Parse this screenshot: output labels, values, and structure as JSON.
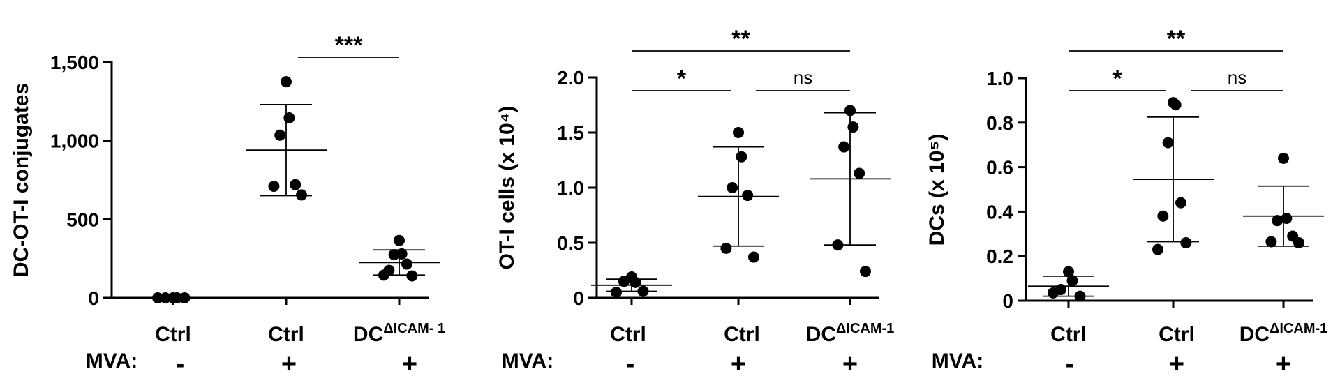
{
  "chart_data": [
    {
      "type": "scatter",
      "title": "",
      "ylabel": "DC-OT-I conjugates",
      "ylim": [
        0,
        1500
      ],
      "yticks": [
        0,
        500,
        1000,
        1500
      ],
      "ytick_labels": [
        "0",
        "500",
        "1,000",
        "1,500"
      ],
      "categories": [
        "Ctrl",
        "Ctrl",
        "DC^ΔICAM- 1"
      ],
      "mva": [
        "-",
        "+",
        "+"
      ],
      "groups": [
        {
          "points": [
            0,
            0,
            0,
            0,
            0
          ],
          "mean": null,
          "sd": null
        },
        {
          "points": [
            1375,
            1145,
            1035,
            720,
            710,
            655
          ],
          "mean": 940,
          "sd": 290
        },
        {
          "points": [
            365,
            280,
            275,
            215,
            175,
            140,
            145
          ],
          "mean": 225,
          "sd": 80
        }
      ],
      "significance": [
        {
          "from": 1,
          "to": 2,
          "label": "***"
        }
      ]
    },
    {
      "type": "scatter",
      "title": "",
      "ylabel": "OT-I cells (x 10⁴)",
      "ylim": [
        0,
        2.0
      ],
      "yticks": [
        0,
        0.5,
        1.0,
        1.5,
        2.0
      ],
      "ytick_labels": [
        "0",
        "0.5",
        "1.0",
        "1.5",
        "2.0"
      ],
      "categories": [
        "Ctrl",
        "Ctrl",
        "DC^ΔICAM-1"
      ],
      "mva": [
        "-",
        "+",
        "+"
      ],
      "groups": [
        {
          "points": [
            0.19,
            0.14,
            0.15,
            0.06,
            0.05
          ],
          "mean": 0.115,
          "sd": 0.055
        },
        {
          "points": [
            1.5,
            1.28,
            1.0,
            0.93,
            0.45,
            0.37
          ],
          "mean": 0.92,
          "sd": 0.45
        },
        {
          "points": [
            1.7,
            1.55,
            1.37,
            1.13,
            0.48,
            0.24
          ],
          "mean": 1.08,
          "sd": 0.6
        }
      ],
      "significance": [
        {
          "from": 0,
          "to": 2,
          "label": "**"
        },
        {
          "from": 0,
          "to": 1,
          "label": "*"
        },
        {
          "from": 1,
          "to": 2,
          "label": "ns"
        }
      ]
    },
    {
      "type": "scatter",
      "title": "",
      "ylabel": "DCs (x 10⁵)",
      "ylim": [
        0,
        1.0
      ],
      "yticks": [
        0,
        0.2,
        0.4,
        0.6,
        0.8,
        1.0
      ],
      "ytick_labels": [
        "0",
        "0.2",
        "0.4",
        "0.6",
        "0.8",
        "1.0"
      ],
      "categories": [
        "Ctrl",
        "Ctrl",
        "DC^ΔICAM-1"
      ],
      "mva": [
        "-",
        "+",
        "+"
      ],
      "groups": [
        {
          "points": [
            0.13,
            0.09,
            0.05,
            0.02,
            0.035
          ],
          "mean": 0.065,
          "sd": 0.045
        },
        {
          "points": [
            0.89,
            0.88,
            0.71,
            0.44,
            0.38,
            0.26,
            0.23
          ],
          "mean": 0.545,
          "sd": 0.28
        },
        {
          "points": [
            0.64,
            0.37,
            0.36,
            0.29,
            0.265,
            0.26
          ],
          "mean": 0.38,
          "sd": 0.135
        }
      ],
      "significance": [
        {
          "from": 0,
          "to": 2,
          "label": "**"
        },
        {
          "from": 0,
          "to": 1,
          "label": "*"
        },
        {
          "from": 1,
          "to": 2,
          "label": "ns"
        }
      ]
    }
  ],
  "mva_label": "MVA:"
}
